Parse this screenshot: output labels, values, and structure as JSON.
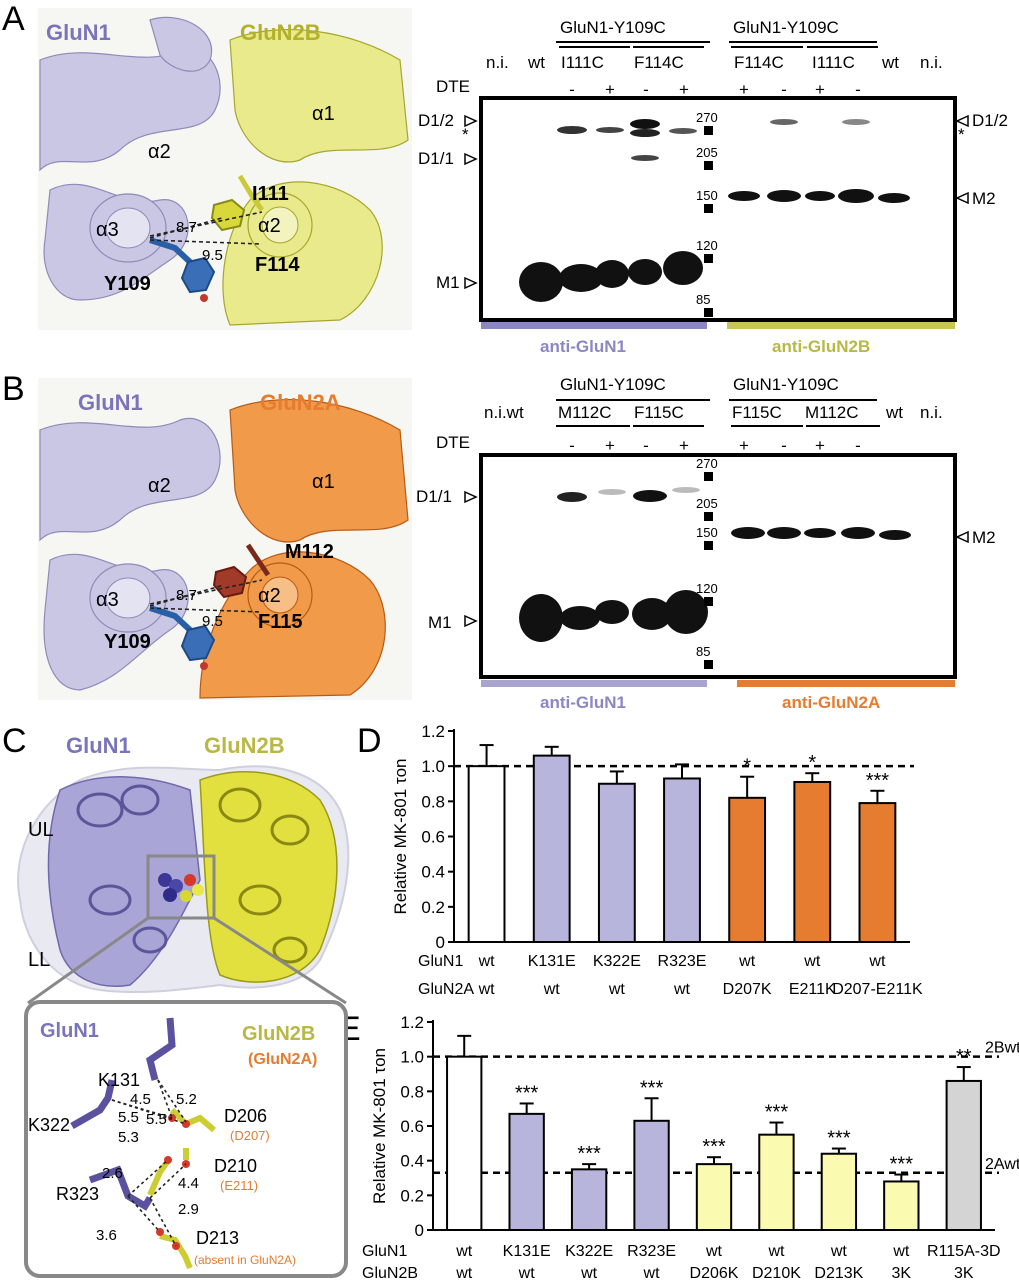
{
  "panel_labels": {
    "a": "A",
    "b": "B",
    "c": "C",
    "d": "D",
    "e": "E"
  },
  "panel_a": {
    "structure": {
      "left_chain": "GluN1",
      "right_chain": "GluN2B",
      "helix_a1": "α1",
      "helix_a2_left": "α2",
      "helix_a3": "α3",
      "helix_a2_right": "α2",
      "res_i111": "I111",
      "res_f114": "F114",
      "res_y109": "Y109",
      "dist_1": "8.7",
      "dist_2": "9.5"
    },
    "blot": {
      "group_left": "GluN1-Y109C",
      "group_right": "GluN1-Y109C",
      "sub_1": "I111C",
      "sub_2": "F114C",
      "sub_3": "F114C",
      "sub_4": "I111C",
      "lane_ni_left": "n.i.",
      "lane_wt_left": "wt",
      "lane_wt_right": "wt",
      "lane_ni_right": "n.i.",
      "dte_label": "DTE",
      "dte_signs": [
        "-",
        "+",
        "-",
        "+",
        "+",
        "-",
        "+",
        "-"
      ],
      "left_markers": {
        "d12": "D1/2",
        "star": "*",
        "d11": "D1/1",
        "m1": "M1"
      },
      "right_markers": {
        "d12": "D1/2",
        "star": "*",
        "m2": "M2"
      },
      "mw": [
        "270",
        "205",
        "150",
        "120",
        "85"
      ],
      "antibody_left": "anti-GluN1",
      "antibody_right": "anti-GluN2B"
    }
  },
  "panel_b": {
    "structure": {
      "left_chain": "GluN1",
      "right_chain": "GluN2A",
      "helix_a1": "α1",
      "helix_a2_left": "α2",
      "helix_a3": "α3",
      "helix_a2_right": "α2",
      "res_m112": "M112",
      "res_f115": "F115",
      "res_y109": "Y109",
      "dist_1": "8.7",
      "dist_2": "9.5"
    },
    "blot": {
      "group_left": "GluN1-Y109C",
      "group_right": "GluN1-Y109C",
      "sub_1": "M112C",
      "sub_2": "F115C",
      "sub_3": "F115C",
      "sub_4": "M112C",
      "lane_niwt_left": "n.i.wt",
      "lane_wt_right": "wt",
      "lane_ni_right": "n.i.",
      "dte_label": "DTE",
      "dte_signs": [
        "-",
        "+",
        "-",
        "+",
        "+",
        "-",
        "+",
        "-"
      ],
      "left_markers": {
        "d11": "D1/1",
        "m1": "M1"
      },
      "right_markers": {
        "m2": "M2"
      },
      "mw": [
        "270",
        "205",
        "150",
        "120",
        "85"
      ],
      "antibody_left": "anti-GluN1",
      "antibody_right": "anti-GluN2A"
    }
  },
  "panel_c": {
    "chain_1": "GluN1",
    "chain_2": "GluN2B",
    "lobe_ul": "UL",
    "lobe_ll": "LL",
    "inset": {
      "chain_1": "GluN1",
      "chain_2": "GluN2B",
      "chain_2_alt": "(GluN2A)",
      "res_k131": "K131",
      "res_k322": "K322",
      "res_r323": "R323",
      "res_d206": "D206",
      "res_d206_alt": "(D207)",
      "res_d210": "D210",
      "res_d210_alt": "(E211)",
      "res_d213": "D213",
      "res_d213_alt": "(absent in GluN2A)",
      "distances": [
        "4.5",
        "5.2",
        "5.5",
        "5.5",
        "5.3",
        "2.6",
        "4.4",
        "2.9",
        "3.6"
      ]
    }
  },
  "colors": {
    "glun1": "#8b86c4",
    "glun1_bar": "#b8b5dc",
    "glun2b": "#b8b844",
    "glun2b_bar": "#fafab0",
    "glun2a": "#e57c2f",
    "grey_bar": "#d4d4d4"
  },
  "chart_data": [
    {
      "type": "bar",
      "panel": "D",
      "ylabel": "Relative MK-801 τon",
      "ylim": [
        0,
        1.2
      ],
      "yticks": [
        "0",
        "0.2",
        "0.4",
        "0.6",
        "0.8",
        "1.0",
        "1.2"
      ],
      "reference_line": 1.0,
      "row_labels": [
        "GluN1",
        "GluN2A"
      ],
      "categories_glun1": [
        "wt",
        "K131E",
        "K322E",
        "R323E",
        "wt",
        "wt",
        "wt"
      ],
      "categories_glun2": [
        "wt",
        "wt",
        "wt",
        "wt",
        "D207K",
        "E211K",
        "D207-E211K"
      ],
      "values": [
        1.0,
        1.06,
        0.9,
        0.93,
        0.82,
        0.91,
        0.79
      ],
      "errors": [
        0.12,
        0.05,
        0.07,
        0.08,
        0.12,
        0.05,
        0.07
      ],
      "colors": [
        "#ffffff",
        "#b8b5dc",
        "#b8b5dc",
        "#b8b5dc",
        "#e57c2f",
        "#e57c2f",
        "#e57c2f"
      ],
      "significance": [
        "",
        "",
        "",
        "",
        "*",
        "*",
        "***"
      ]
    },
    {
      "type": "bar",
      "panel": "E",
      "ylabel": "Relative MK-801 τon",
      "ylim": [
        0,
        1.2
      ],
      "yticks": [
        "0",
        "0.2",
        "0.4",
        "0.6",
        "0.8",
        "1.0",
        "1.2"
      ],
      "reference_lines": [
        {
          "value": 1.0,
          "label": "2Bwt"
        },
        {
          "value": 0.33,
          "label": "2Awt"
        }
      ],
      "row_labels": [
        "GluN1",
        "GluN2B"
      ],
      "categories_glun1": [
        "wt",
        "K131E",
        "K322E",
        "R323E",
        "wt",
        "wt",
        "wt",
        "wt",
        "R115A-3D"
      ],
      "categories_glun2": [
        "wt",
        "wt",
        "wt",
        "wt",
        "D206K",
        "D210K",
        "D213K",
        "3K",
        "3K"
      ],
      "values": [
        1.0,
        0.67,
        0.35,
        0.63,
        0.38,
        0.55,
        0.44,
        0.28,
        0.86
      ],
      "errors": [
        0.12,
        0.06,
        0.03,
        0.13,
        0.04,
        0.07,
        0.03,
        0.04,
        0.08
      ],
      "colors": [
        "#ffffff",
        "#b8b5dc",
        "#b8b5dc",
        "#b8b5dc",
        "#fafab0",
        "#fafab0",
        "#fafab0",
        "#fafab0",
        "#d4d4d4"
      ],
      "significance": [
        "",
        "***",
        "***",
        "***",
        "***",
        "***",
        "***",
        "***",
        "**"
      ]
    }
  ]
}
